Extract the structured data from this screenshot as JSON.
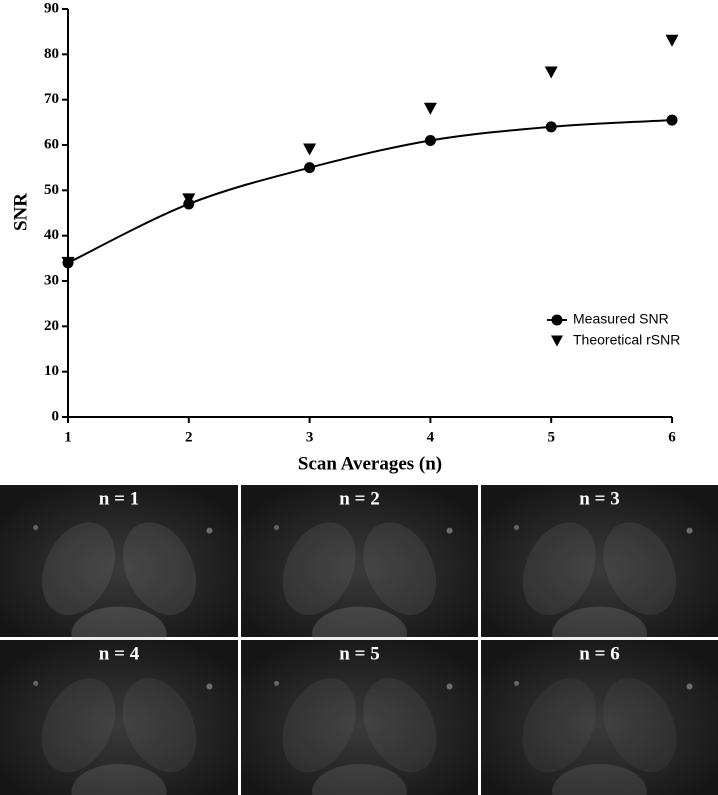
{
  "chart_data": {
    "type": "scatter",
    "xlabel": "Scan Averages (n)",
    "ylabel": "SNR",
    "x": [
      1,
      2,
      3,
      4,
      5,
      6
    ],
    "series": [
      {
        "name": "Measured SNR",
        "color": "#000000",
        "marker": "circle",
        "fit": true,
        "values": [
          34,
          47,
          55,
          61,
          64,
          65.5
        ]
      },
      {
        "name": "Theoretical rSNR",
        "color": "#000000",
        "marker": "triangle-down",
        "values": [
          34,
          48,
          59,
          68,
          76,
          83
        ]
      }
    ],
    "xlim": [
      1,
      6
    ],
    "xticks": [
      1,
      2,
      3,
      4,
      5,
      6
    ],
    "ylim": [
      0,
      90
    ],
    "yticks": [
      0,
      10,
      20,
      30,
      40,
      50,
      60,
      70,
      80,
      90
    ],
    "legend": "lower right"
  },
  "panels": [
    "n = 1",
    "n = 2",
    "n = 3",
    "n = 4",
    "n = 5",
    "n = 6"
  ]
}
